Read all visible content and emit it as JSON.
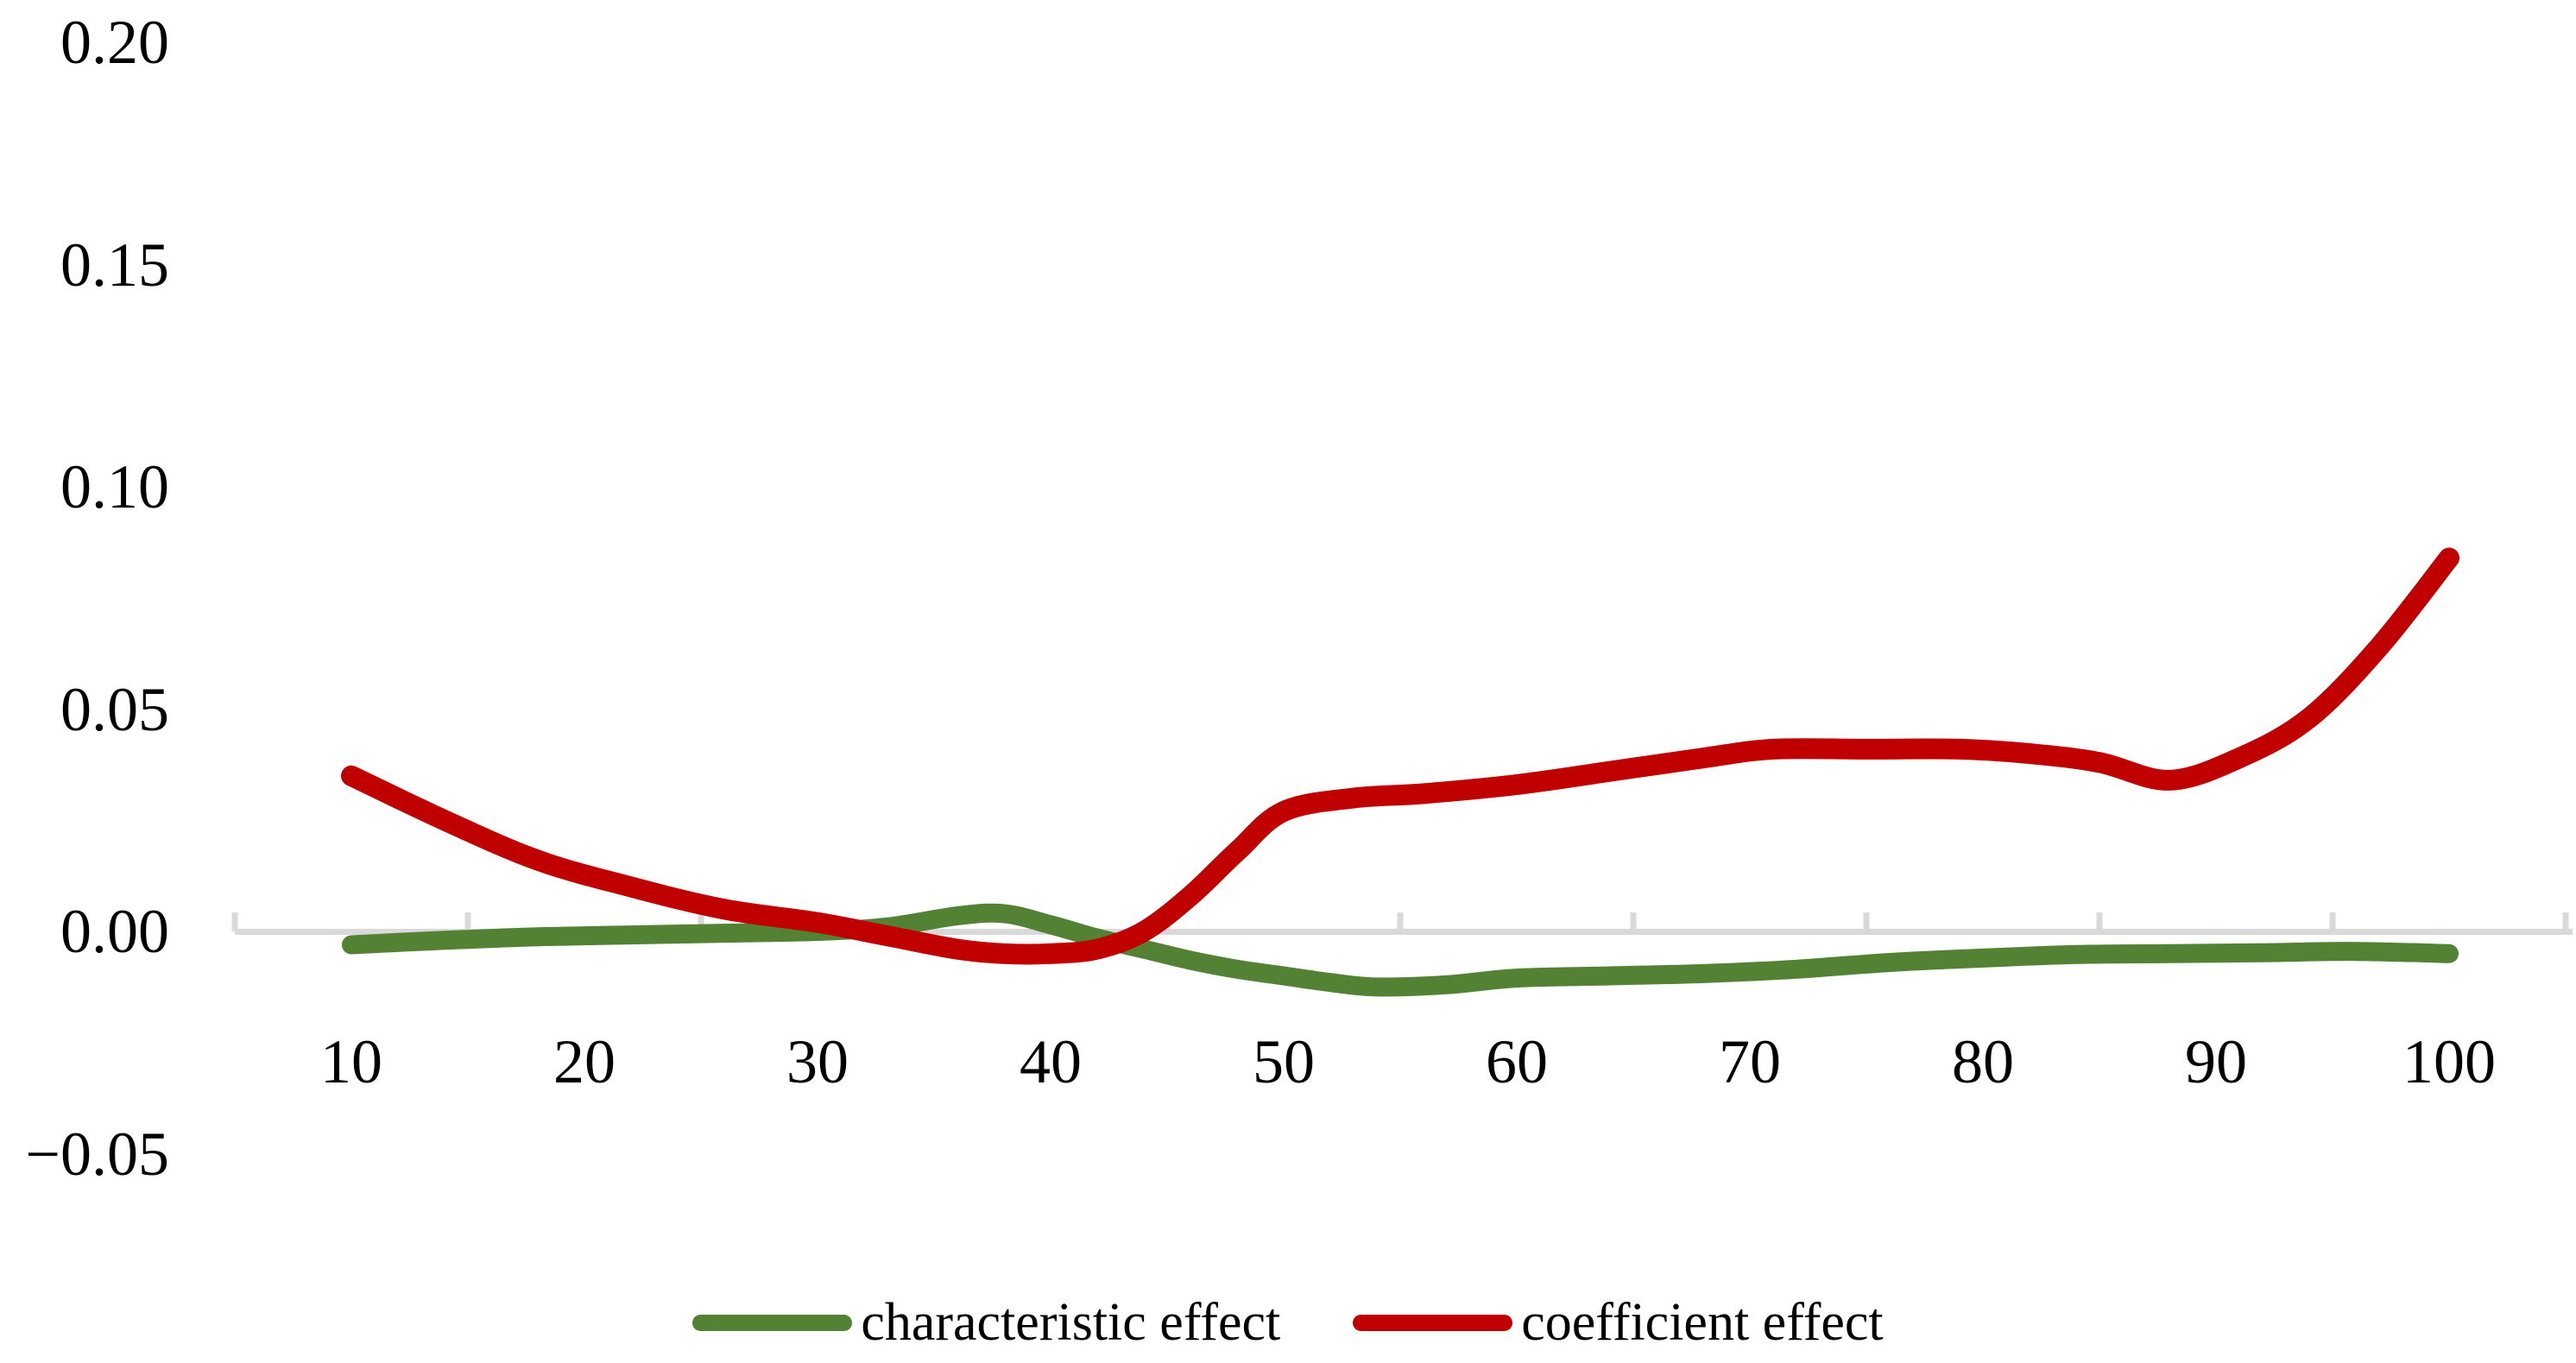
{
  "chart_data": {
    "type": "line",
    "title": "",
    "xlabel": "",
    "ylabel": "",
    "grid": false,
    "smoothed": true,
    "legend_position": "bottom-center",
    "axis_color": "#D9D9D9",
    "text_color": "#000000",
    "background_color": "#FFFFFF",
    "categories": [
      10,
      20,
      30,
      40,
      50,
      60,
      70,
      80,
      90,
      100
    ],
    "x_tick_labels": [
      "10",
      "20",
      "30",
      "40",
      "50",
      "60",
      "70",
      "80",
      "90",
      "100"
    ],
    "y_tick_labels": [
      "0.20",
      "0.15",
      "0.10",
      "0.05",
      "0.00",
      "−0.05"
    ],
    "y_tick_values": [
      0.2,
      0.15,
      0.1,
      0.05,
      0.0,
      -0.05
    ],
    "ylim": [
      -0.05,
      0.2
    ],
    "x_tick_style": "inside, at category boundaries",
    "series": [
      {
        "name": "characteristic effect",
        "color": "#548235",
        "line_width": 22,
        "values": [
          -0.003,
          -0.001,
          0.0,
          0.002,
          -0.01,
          -0.01,
          -0.009,
          -0.006,
          -0.005,
          -0.005
        ],
        "render_points": [
          [
            10,
            -0.003
          ],
          [
            14,
            -0.002
          ],
          [
            18,
            -0.0012
          ],
          [
            22,
            -0.0008
          ],
          [
            26,
            -0.0004
          ],
          [
            30,
            0.0
          ],
          [
            33,
            0.001
          ],
          [
            36,
            0.0035
          ],
          [
            38,
            0.004
          ],
          [
            40,
            0.0015
          ],
          [
            42,
            -0.0015
          ],
          [
            44,
            -0.004
          ],
          [
            46,
            -0.0065
          ],
          [
            48,
            -0.0085
          ],
          [
            50,
            -0.01
          ],
          [
            52,
            -0.0115
          ],
          [
            54,
            -0.0125
          ],
          [
            57,
            -0.012
          ],
          [
            60,
            -0.0105
          ],
          [
            64,
            -0.01
          ],
          [
            68,
            -0.0095
          ],
          [
            72,
            -0.0085
          ],
          [
            76,
            -0.007
          ],
          [
            80,
            -0.006
          ],
          [
            84,
            -0.0052
          ],
          [
            88,
            -0.005
          ],
          [
            92,
            -0.0048
          ],
          [
            96,
            -0.0045
          ],
          [
            100,
            -0.005
          ]
        ]
      },
      {
        "name": "coefficient effect",
        "color": "#C00000",
        "line_width": 24,
        "values": [
          0.035,
          0.012,
          0.002,
          -0.005,
          0.027,
          0.033,
          0.041,
          0.04,
          0.036,
          0.084
        ],
        "render_points": [
          [
            10,
            0.035
          ],
          [
            14,
            0.025
          ],
          [
            18,
            0.016
          ],
          [
            22,
            0.01
          ],
          [
            26,
            0.005
          ],
          [
            30,
            0.002
          ],
          [
            33,
            -0.001
          ],
          [
            36,
            -0.004
          ],
          [
            38,
            -0.005
          ],
          [
            40,
            -0.005
          ],
          [
            42,
            -0.004
          ],
          [
            44,
            0.0
          ],
          [
            46,
            0.008
          ],
          [
            48,
            0.018
          ],
          [
            50,
            0.027
          ],
          [
            53,
            0.03
          ],
          [
            56,
            0.031
          ],
          [
            60,
            0.033
          ],
          [
            64,
            0.036
          ],
          [
            68,
            0.039
          ],
          [
            71,
            0.041
          ],
          [
            75,
            0.041
          ],
          [
            79,
            0.041
          ],
          [
            82,
            0.04
          ],
          [
            85,
            0.038
          ],
          [
            88,
            0.034
          ],
          [
            91,
            0.039
          ],
          [
            94,
            0.048
          ],
          [
            97,
            0.064
          ],
          [
            100,
            0.084
          ]
        ]
      }
    ]
  },
  "legend": {
    "items": [
      {
        "label": "characteristic effect",
        "color": "#548235"
      },
      {
        "label": "coefficient effect",
        "color": "#C00000"
      }
    ]
  }
}
